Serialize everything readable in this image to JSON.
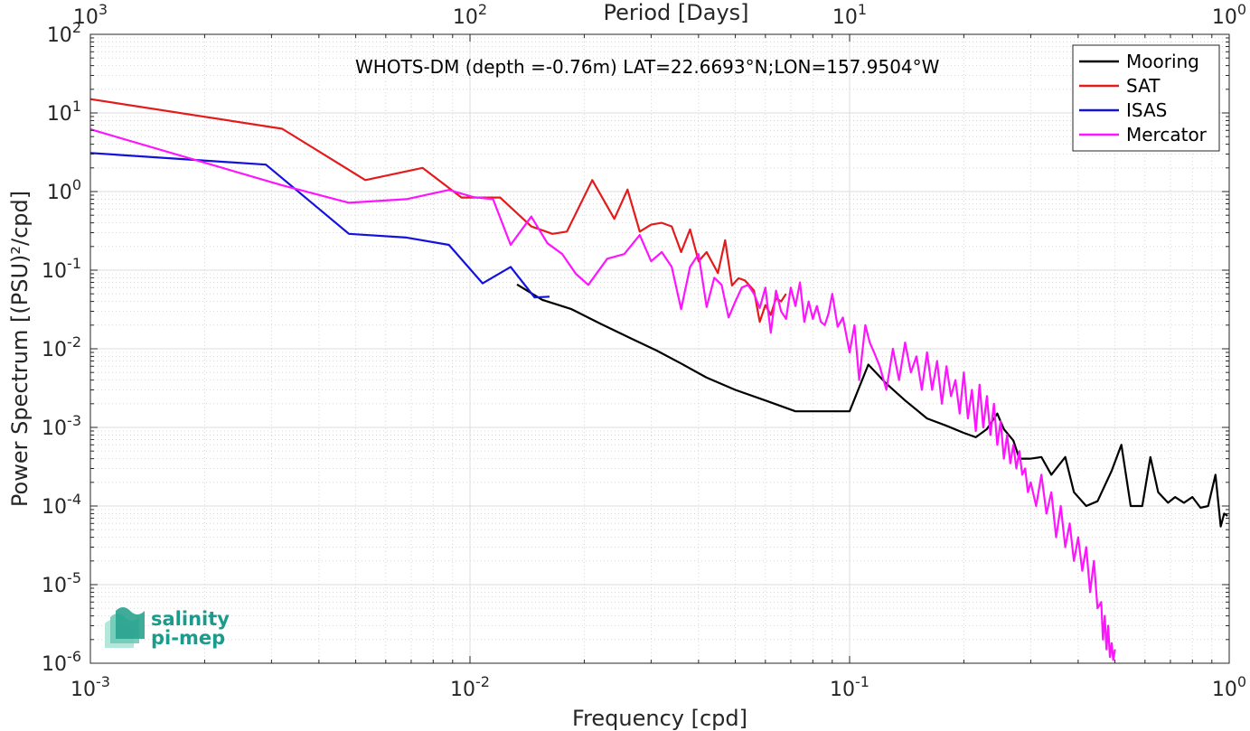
{
  "chart_data": {
    "type": "line",
    "scale": {
      "x": "log",
      "y": "log"
    },
    "xlabel": "Frequency [cpd]",
    "ylabel": "Power Spectrum [(PSU)²/cpd]",
    "x2label": "Period [Days]",
    "xlim": [
      0.001,
      1
    ],
    "ylim": [
      1e-06,
      100
    ],
    "grid": true,
    "minor_grid": true,
    "legend_position": "top-right",
    "annotation": "WHOTS-DM (depth =-0.76m) LAT=22.6693°N;LON=157.9504°W",
    "logo": {
      "line1": "salinity",
      "line2": "pi-mep"
    },
    "xticks": [
      {
        "value": 0.001,
        "mant": "10",
        "exp": "-3"
      },
      {
        "value": 0.01,
        "mant": "10",
        "exp": "-2"
      },
      {
        "value": 0.1,
        "mant": "10",
        "exp": "-1"
      },
      {
        "value": 1,
        "mant": "10",
        "exp": "0"
      }
    ],
    "x2ticks": [
      {
        "value": 0.001,
        "mant": "10",
        "exp": "3"
      },
      {
        "value": 0.01,
        "mant": "10",
        "exp": "2"
      },
      {
        "value": 0.1,
        "mant": "10",
        "exp": "1"
      },
      {
        "value": 1,
        "mant": "10",
        "exp": "0"
      }
    ],
    "yticks": [
      {
        "value": 100,
        "mant": "10",
        "exp": "2"
      },
      {
        "value": 10,
        "mant": "10",
        "exp": "1"
      },
      {
        "value": 1,
        "mant": "10",
        "exp": "0"
      },
      {
        "value": 0.1,
        "mant": "10",
        "exp": "-1"
      },
      {
        "value": 0.01,
        "mant": "10",
        "exp": "-2"
      },
      {
        "value": 0.001,
        "mant": "10",
        "exp": "-3"
      },
      {
        "value": 0.0001,
        "mant": "10",
        "exp": "-4"
      },
      {
        "value": 1e-05,
        "mant": "10",
        "exp": "-5"
      },
      {
        "value": 1e-06,
        "mant": "10",
        "exp": "-6"
      }
    ],
    "series": [
      {
        "name": "Mooring",
        "color": "#000000",
        "x": [
          0.0133,
          0.0155,
          0.0185,
          0.022,
          0.0265,
          0.031,
          0.036,
          0.042,
          0.05,
          0.06,
          0.072,
          0.085,
          0.1,
          0.112,
          0.125,
          0.14,
          0.16,
          0.18,
          0.2,
          0.215,
          0.23,
          0.245,
          0.255,
          0.27,
          0.28,
          0.3,
          0.32,
          0.34,
          0.37,
          0.39,
          0.42,
          0.45,
          0.49,
          0.52,
          0.55,
          0.59,
          0.62,
          0.65,
          0.69,
          0.72,
          0.76,
          0.8,
          0.84,
          0.88,
          0.92,
          0.95,
          0.97,
          0.99
        ],
        "y": [
          0.0658,
          0.042,
          0.032,
          0.021,
          0.0136,
          0.0095,
          0.0065,
          0.0043,
          0.003,
          0.0022,
          0.0016,
          0.0016,
          0.0016,
          0.0063,
          0.0036,
          0.0022,
          0.0013,
          0.00105,
          0.00085,
          0.00075,
          0.00095,
          0.0015,
          0.00095,
          0.00068,
          0.0004,
          0.0004,
          0.00042,
          0.00025,
          0.00042,
          0.00015,
          0.0001,
          0.000115,
          0.00028,
          0.0006,
          0.0001,
          0.0001,
          0.00042,
          0.00015,
          0.00011,
          0.00013,
          0.00011,
          0.00013,
          9.5e-05,
          0.0001,
          0.00025,
          5.5e-05,
          8e-05,
          7.5e-05
        ]
      },
      {
        "name": "SAT",
        "color": "#e41b1b",
        "x": [
          0.001,
          0.0032,
          0.0053,
          0.0075,
          0.0095,
          0.012,
          0.0145,
          0.0165,
          0.018,
          0.021,
          0.024,
          0.026,
          0.028,
          0.03,
          0.032,
          0.034,
          0.036,
          0.038,
          0.04,
          0.042,
          0.045,
          0.047,
          0.049,
          0.051,
          0.053,
          0.056,
          0.058,
          0.06,
          0.062,
          0.064,
          0.066,
          0.068
        ],
        "y": [
          15,
          6.3,
          1.4,
          2.0,
          0.84,
          0.84,
          0.36,
          0.29,
          0.31,
          1.4,
          0.45,
          1.06,
          0.31,
          0.38,
          0.4,
          0.36,
          0.17,
          0.33,
          0.13,
          0.17,
          0.092,
          0.24,
          0.064,
          0.079,
          0.074,
          0.055,
          0.022,
          0.036,
          0.027,
          0.044,
          0.04,
          0.05
        ]
      },
      {
        "name": "ISAS",
        "color": "#1212dc",
        "x": [
          0.001,
          0.0029,
          0.0048,
          0.0068,
          0.0088,
          0.0108,
          0.0128,
          0.0148,
          0.0162
        ],
        "y": [
          3.1,
          2.2,
          0.29,
          0.26,
          0.21,
          0.068,
          0.11,
          0.045,
          0.046
        ]
      },
      {
        "name": "Mercator",
        "color": "#ff14ff",
        "x": [
          0.001,
          0.0032,
          0.0048,
          0.0068,
          0.0088,
          0.0102,
          0.0115,
          0.0128,
          0.0145,
          0.016,
          0.0175,
          0.019,
          0.0205,
          0.023,
          0.0255,
          0.028,
          0.03,
          0.032,
          0.034,
          0.036,
          0.038,
          0.04,
          0.042,
          0.044,
          0.046,
          0.048,
          0.05,
          0.052,
          0.054,
          0.056,
          0.058,
          0.06,
          0.062,
          0.064,
          0.066,
          0.068,
          0.07,
          0.072,
          0.074,
          0.076,
          0.078,
          0.08,
          0.082,
          0.084,
          0.086,
          0.088,
          0.09,
          0.093,
          0.096,
          0.1,
          0.103,
          0.106,
          0.11,
          0.113,
          0.116,
          0.12,
          0.125,
          0.13,
          0.135,
          0.14,
          0.145,
          0.15,
          0.155,
          0.16,
          0.165,
          0.17,
          0.175,
          0.18,
          0.185,
          0.19,
          0.195,
          0.2,
          0.205,
          0.21,
          0.215,
          0.22,
          0.225,
          0.23,
          0.235,
          0.24,
          0.245,
          0.25,
          0.255,
          0.26,
          0.265,
          0.27,
          0.275,
          0.28,
          0.285,
          0.29,
          0.295,
          0.3,
          0.31,
          0.32,
          0.33,
          0.34,
          0.35,
          0.36,
          0.37,
          0.38,
          0.39,
          0.4,
          0.41,
          0.42,
          0.43,
          0.44,
          0.45,
          0.46,
          0.465,
          0.47,
          0.475,
          0.48,
          0.485,
          0.49,
          0.495,
          0.5
        ],
        "y": [
          6.2,
          1.2,
          0.72,
          0.8,
          1.05,
          0.85,
          0.8,
          0.21,
          0.48,
          0.22,
          0.16,
          0.09,
          0.065,
          0.14,
          0.16,
          0.28,
          0.13,
          0.17,
          0.11,
          0.032,
          0.11,
          0.16,
          0.034,
          0.08,
          0.065,
          0.025,
          0.04,
          0.06,
          0.065,
          0.05,
          0.033,
          0.06,
          0.016,
          0.055,
          0.03,
          0.024,
          0.06,
          0.035,
          0.07,
          0.022,
          0.04,
          0.024,
          0.035,
          0.022,
          0.02,
          0.028,
          0.05,
          0.019,
          0.025,
          0.009,
          0.02,
          0.004,
          0.02,
          0.012,
          0.009,
          0.006,
          0.003,
          0.01,
          0.004,
          0.012,
          0.005,
          0.008,
          0.003,
          0.009,
          0.003,
          0.007,
          0.002,
          0.006,
          0.0025,
          0.004,
          0.0015,
          0.005,
          0.0013,
          0.003,
          0.0009,
          0.0035,
          0.001,
          0.0025,
          0.0008,
          0.002,
          0.0006,
          0.0012,
          0.0004,
          0.0008,
          0.00035,
          0.0006,
          0.0003,
          0.0005,
          0.00025,
          0.0003,
          0.00015,
          0.0002,
          0.0001,
          0.00025,
          8e-05,
          0.00015,
          4e-05,
          0.0001,
          3e-05,
          6e-05,
          2e-05,
          4e-05,
          1.5e-05,
          3e-05,
          8e-06,
          2e-05,
          5e-06,
          6e-06,
          2e-06,
          4e-06,
          1.5e-06,
          3e-06,
          1.2e-06,
          1.8e-06,
          1.1e-06,
          1.5e-06
        ]
      }
    ]
  }
}
